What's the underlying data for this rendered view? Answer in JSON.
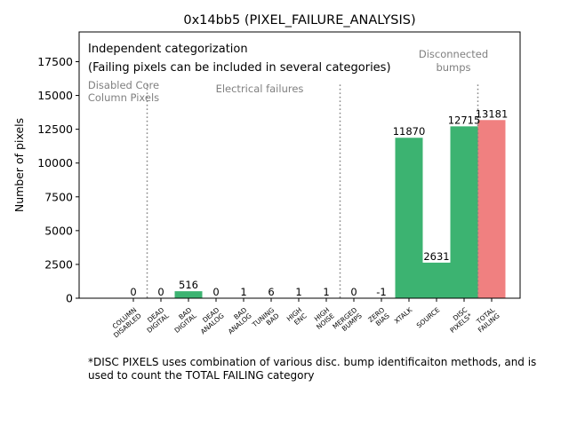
{
  "chart_data": {
    "type": "bar",
    "title": "0x14bb5 (PIXEL_FAILURE_ANALYSIS)",
    "xlabel": "",
    "ylabel": "Number of pixels",
    "ylim": [
      0,
      19700
    ],
    "yticks": [
      0,
      2500,
      5000,
      7500,
      10000,
      12500,
      15000,
      17500
    ],
    "ytick_labels": [
      "0",
      "2500",
      "5000",
      "7500",
      "10000",
      "12500",
      "15000",
      "17500"
    ],
    "categories": [
      [
        "COLUMN",
        "DISABLED"
      ],
      [
        "DEAD",
        "DIGITAL"
      ],
      [
        "BAD",
        "DIGITAL"
      ],
      [
        "DEAD",
        "ANALOG"
      ],
      [
        "BAD",
        "ANALOG"
      ],
      [
        "TUNING",
        "BAD"
      ],
      [
        "HIGH",
        "ENC"
      ],
      [
        "HIGH",
        "NOISE"
      ],
      [
        "MERGED",
        "BUMPS"
      ],
      [
        "ZERO",
        "BIAS"
      ],
      [
        "XTALK"
      ],
      [
        "SOURCE"
      ],
      [
        "DISC",
        "PIXELS*"
      ],
      [
        "TOTAL",
        "FAILING"
      ]
    ],
    "values": [
      0,
      0,
      516,
      0,
      1,
      6,
      1,
      1,
      0,
      -1,
      11870,
      2631,
      12715,
      13181
    ],
    "value_labels": [
      "0",
      "0",
      "516",
      "0",
      "1",
      "6",
      "1",
      "1",
      "0",
      "-1",
      "11870",
      "2631",
      "12715",
      "13181"
    ],
    "bar_colors": [
      "#3cb371",
      "#3cb371",
      "#3cb371",
      "#3cb371",
      "#3cb371",
      "#3cb371",
      "#3cb371",
      "#3cb371",
      "#3cb371",
      "#3cb371",
      "#3cb371",
      "#3cb371",
      "#3cb371",
      "#f08080"
    ],
    "separators_after": [
      0,
      7,
      12
    ],
    "annotations": {
      "legend_line1": "Independent categorization",
      "legend_line2": "(Failing pixels can be included in several categories)",
      "disabled_core": [
        "Disabled Core",
        "Column Pixels"
      ],
      "electrical": "Electrical failures",
      "disconnected": [
        "Disconnected",
        "bumps"
      ]
    },
    "footnote": [
      "*DISC PIXELS uses combination of various disc. bump identificaiton methods, and is",
      "used to count the TOTAL FAILING category"
    ]
  },
  "colors": {
    "pass": "#3cb371",
    "total": "#f08080",
    "annotation": "#808080",
    "separator": "#808080"
  }
}
